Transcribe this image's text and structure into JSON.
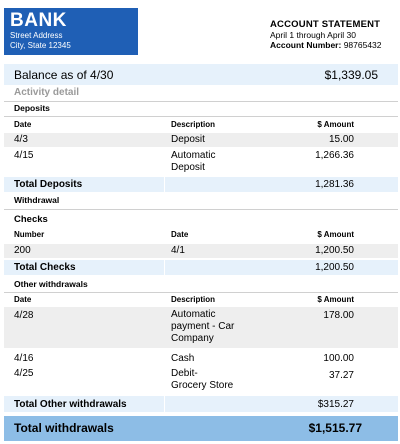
{
  "bank": {
    "name": "BANK",
    "street": "Street Address",
    "city": "City, State 12345"
  },
  "statement": {
    "title": "ACCOUNT STATEMENT",
    "period": "April 1 through April 30",
    "account_label": "Account Number:",
    "account_number": "98765432"
  },
  "balance": {
    "label": "Balance as of 4/30",
    "value": "$1,339.05"
  },
  "activity_detail": "Activity detail",
  "deposits": {
    "title": "Deposits",
    "headers": {
      "date": "Date",
      "description": "Description",
      "amount": "$ Amount"
    },
    "rows": [
      {
        "date": "4/3",
        "desc1": "Deposit",
        "desc2": "",
        "amount": "15.00"
      },
      {
        "date": "4/15",
        "desc1": "Automatic",
        "desc2": "Deposit",
        "amount": "1,266.36"
      }
    ],
    "total_label": "Total Deposits",
    "total_value": "1,281.36"
  },
  "withdrawal": {
    "title": "Withdrawal",
    "checks": {
      "title": "Checks",
      "headers": {
        "number": "Number",
        "date": "Date",
        "amount": "$ Amount"
      },
      "rows": [
        {
          "number": "200",
          "date": "4/1",
          "amount": "1,200.50"
        }
      ],
      "total_label": "Total Checks",
      "total_value": "1,200.50"
    },
    "other": {
      "title": "Other withdrawals",
      "headers": {
        "date": "Date",
        "description": "Description",
        "amount": "$ Amount"
      },
      "rows": [
        {
          "date": "4/28",
          "desc1": "Automatic",
          "desc2": "payment - Car",
          "desc3": "Company",
          "amount": "178.00"
        },
        {
          "date": "4/16",
          "desc1": "Cash",
          "amount": "100.00"
        },
        {
          "date": "4/25",
          "desc1": "Debit-",
          "desc2": "Grocery Store",
          "amount": "37.27"
        }
      ],
      "total_label": "Total Other withdrawals",
      "total_value": "$315.27"
    }
  },
  "total_withdrawals": {
    "label": "Total withdrawals",
    "value": "$1,515.77"
  },
  "colors": {
    "brand": "#1f5fb5",
    "light_band": "#e6f1fb",
    "grand_band": "#8dbde6",
    "grey_row": "#eeeeee"
  }
}
